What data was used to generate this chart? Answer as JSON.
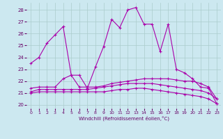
{
  "bg_color": "#cce8f0",
  "line_color": "#aa00aa",
  "grid_color": "#aacccc",
  "xlabel": "Windchill (Refroidissement éolien,°C)",
  "ylim": [
    19.7,
    28.6
  ],
  "xlim": [
    -0.5,
    23.5
  ],
  "yticks": [
    20,
    21,
    22,
    23,
    24,
    25,
    26,
    27,
    28
  ],
  "xticks": [
    0,
    1,
    2,
    3,
    4,
    5,
    6,
    7,
    8,
    9,
    10,
    11,
    12,
    13,
    14,
    15,
    16,
    17,
    18,
    19,
    20,
    21,
    22,
    23
  ],
  "series": [
    {
      "x": [
        0,
        1,
        2,
        3,
        4,
        5,
        6,
        7,
        8,
        9,
        10,
        11,
        12,
        13,
        14,
        15,
        16,
        17,
        18,
        19,
        20,
        21,
        22,
        23
      ],
      "y": [
        23.5,
        24.0,
        25.2,
        25.9,
        26.6,
        22.5,
        22.5,
        21.4,
        23.2,
        24.9,
        27.2,
        26.5,
        28.0,
        28.2,
        26.8,
        26.8,
        24.5,
        26.8,
        23.0,
        22.7,
        22.2,
        21.5,
        21.4,
        20.1
      ]
    },
    {
      "x": [
        0,
        1,
        2,
        3,
        4,
        5,
        6,
        7,
        8,
        9,
        10,
        11,
        12,
        13,
        14,
        15,
        16,
        17,
        18,
        19,
        20,
        21,
        22,
        23
      ],
      "y": [
        21.4,
        21.5,
        21.5,
        21.5,
        22.2,
        22.5,
        21.5,
        21.5,
        21.5,
        21.6,
        21.8,
        21.9,
        22.0,
        22.1,
        22.2,
        22.2,
        22.2,
        22.2,
        22.1,
        22.0,
        22.0,
        21.8,
        21.5,
        20.5
      ]
    },
    {
      "x": [
        0,
        1,
        2,
        3,
        4,
        5,
        6,
        7,
        8,
        9,
        10,
        11,
        12,
        13,
        14,
        15,
        16,
        17,
        18,
        19,
        20,
        21,
        22,
        23
      ],
      "y": [
        21.1,
        21.3,
        21.3,
        21.3,
        21.3,
        21.3,
        21.3,
        21.3,
        21.4,
        21.5,
        21.6,
        21.7,
        21.8,
        21.8,
        21.8,
        21.8,
        21.7,
        21.6,
        21.5,
        21.4,
        21.3,
        21.2,
        21.0,
        20.5
      ]
    },
    {
      "x": [
        0,
        1,
        2,
        3,
        4,
        5,
        6,
        7,
        8,
        9,
        10,
        11,
        12,
        13,
        14,
        15,
        16,
        17,
        18,
        19,
        20,
        21,
        22,
        23
      ],
      "y": [
        21.0,
        21.1,
        21.1,
        21.1,
        21.1,
        21.1,
        21.1,
        21.1,
        21.1,
        21.1,
        21.2,
        21.3,
        21.3,
        21.4,
        21.4,
        21.3,
        21.2,
        21.1,
        21.0,
        20.9,
        20.8,
        20.7,
        20.5,
        20.1
      ]
    }
  ]
}
